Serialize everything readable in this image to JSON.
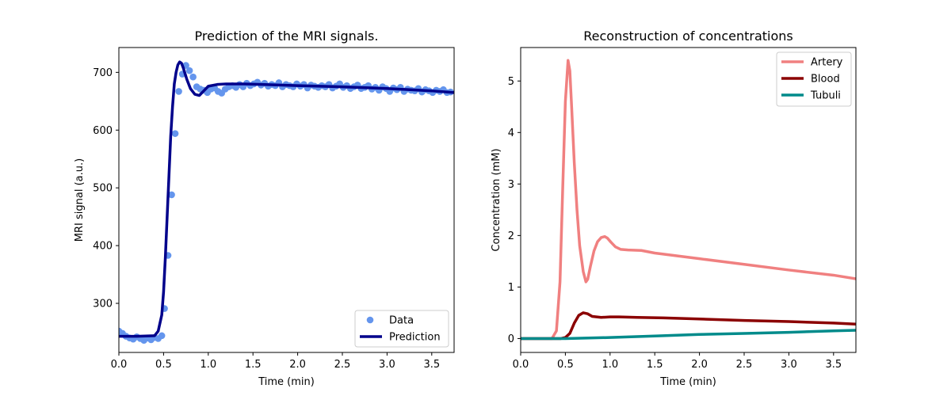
{
  "chart_data": [
    {
      "type": "line",
      "title": "Prediction of the MRI signals.",
      "xlabel": "Time (min)",
      "ylabel": "MRI signal (a.u.)",
      "xlim": [
        0.0,
        3.75
      ],
      "ylim": [
        215,
        743
      ],
      "xticks": [
        0.0,
        0.5,
        1.0,
        1.5,
        2.0,
        2.5,
        3.0,
        3.5
      ],
      "xtick_labels": [
        "0.0",
        "0.5",
        "1.0",
        "1.5",
        "2.0",
        "2.5",
        "3.0",
        "3.5"
      ],
      "yticks": [
        300,
        400,
        500,
        600,
        700
      ],
      "ytick_labels": [
        "300",
        "400",
        "500",
        "600",
        "700"
      ],
      "legend_position": "lower-right",
      "series": [
        {
          "name": "Data",
          "kind": "scatter",
          "color": "#6495ed",
          "x": [
            0.0,
            0.04,
            0.08,
            0.12,
            0.16,
            0.2,
            0.24,
            0.28,
            0.32,
            0.36,
            0.4,
            0.44,
            0.48,
            0.51,
            0.55,
            0.59,
            0.63,
            0.67,
            0.71,
            0.75,
            0.79,
            0.83,
            0.87,
            0.91,
            0.95,
            0.99,
            1.03,
            1.07,
            1.11,
            1.15,
            1.19,
            1.23,
            1.27,
            1.31,
            1.35,
            1.39,
            1.43,
            1.47,
            1.51,
            1.55,
            1.59,
            1.63,
            1.67,
            1.71,
            1.75,
            1.79,
            1.83,
            1.87,
            1.91,
            1.95,
            1.99,
            2.03,
            2.07,
            2.11,
            2.15,
            2.19,
            2.23,
            2.27,
            2.31,
            2.35,
            2.39,
            2.43,
            2.47,
            2.51,
            2.55,
            2.59,
            2.63,
            2.67,
            2.71,
            2.75,
            2.79,
            2.83,
            2.87,
            2.91,
            2.95,
            2.99,
            3.03,
            3.07,
            3.11,
            3.15,
            3.19,
            3.23,
            3.27,
            3.31,
            3.35,
            3.39,
            3.43,
            3.47,
            3.51,
            3.55,
            3.59,
            3.63,
            3.67,
            3.71
          ],
          "values": [
            252,
            248,
            243,
            240,
            238,
            242,
            239,
            236,
            240,
            237,
            241,
            239,
            244,
            291,
            383,
            488,
            594,
            667,
            697,
            712,
            703,
            692,
            675,
            671,
            669,
            665,
            671,
            673,
            667,
            664,
            671,
            675,
            677,
            674,
            679,
            675,
            681,
            677,
            680,
            683,
            678,
            681,
            676,
            679,
            677,
            682,
            675,
            679,
            677,
            675,
            680,
            676,
            679,
            673,
            678,
            676,
            674,
            677,
            675,
            679,
            673,
            676,
            680,
            674,
            677,
            672,
            675,
            678,
            672,
            674,
            677,
            671,
            674,
            669,
            675,
            672,
            667,
            673,
            670,
            674,
            667,
            671,
            669,
            668,
            672,
            666,
            670,
            668,
            665,
            669,
            667,
            670,
            665,
            666
          ]
        },
        {
          "name": "Prediction",
          "kind": "line",
          "color": "#00008b",
          "x": [
            0.0,
            0.2,
            0.4,
            0.44,
            0.48,
            0.5,
            0.52,
            0.54,
            0.56,
            0.58,
            0.6,
            0.62,
            0.64,
            0.66,
            0.68,
            0.7,
            0.72,
            0.74,
            0.76,
            0.8,
            0.85,
            0.9,
            0.95,
            1.0,
            1.1,
            1.2,
            1.4,
            1.6,
            2.0,
            2.5,
            3.0,
            3.5,
            3.75
          ],
          "values": [
            243,
            243,
            244,
            252,
            280,
            320,
            380,
            450,
            520,
            590,
            640,
            680,
            700,
            713,
            718,
            716,
            708,
            698,
            688,
            672,
            662,
            660,
            668,
            676,
            679,
            680,
            680,
            679,
            677,
            675,
            672,
            668,
            665
          ]
        }
      ]
    },
    {
      "type": "line",
      "title": "Reconstruction of concentrations",
      "xlabel": "Time (min)",
      "ylabel": "Concentration (mM)",
      "xlim": [
        0.0,
        3.75
      ],
      "ylim": [
        -0.27,
        5.65
      ],
      "xticks": [
        0.0,
        0.5,
        1.0,
        1.5,
        2.0,
        2.5,
        3.0,
        3.5
      ],
      "xtick_labels": [
        "0.0",
        "0.5",
        "1.0",
        "1.5",
        "2.0",
        "2.5",
        "3.0",
        "3.5"
      ],
      "yticks": [
        0,
        1,
        2,
        3,
        4,
        5
      ],
      "ytick_labels": [
        "0",
        "1",
        "2",
        "3",
        "4",
        "5"
      ],
      "legend_position": "top-right",
      "series": [
        {
          "name": "Artery",
          "kind": "line",
          "color": "#f08080",
          "x": [
            0.0,
            0.35,
            0.4,
            0.44,
            0.47,
            0.5,
            0.53,
            0.55,
            0.57,
            0.6,
            0.63,
            0.66,
            0.7,
            0.73,
            0.75,
            0.78,
            0.82,
            0.86,
            0.9,
            0.94,
            0.97,
            1.01,
            1.06,
            1.12,
            1.2,
            1.35,
            1.5,
            2.0,
            2.5,
            3.0,
            3.5,
            3.75
          ],
          "values": [
            0.0,
            0.0,
            0.15,
            1.1,
            2.9,
            4.6,
            5.4,
            5.2,
            4.5,
            3.4,
            2.5,
            1.8,
            1.3,
            1.1,
            1.15,
            1.4,
            1.7,
            1.88,
            1.96,
            1.98,
            1.95,
            1.87,
            1.78,
            1.73,
            1.72,
            1.71,
            1.66,
            1.55,
            1.44,
            1.33,
            1.23,
            1.16
          ]
        },
        {
          "name": "Blood",
          "kind": "line",
          "color": "#8b0000",
          "x": [
            0.0,
            0.45,
            0.5,
            0.55,
            0.6,
            0.65,
            0.7,
            0.75,
            0.8,
            0.9,
            1.0,
            1.1,
            1.3,
            1.6,
            2.0,
            2.5,
            3.0,
            3.5,
            3.75
          ],
          "values": [
            0.0,
            0.0,
            0.02,
            0.1,
            0.3,
            0.45,
            0.5,
            0.48,
            0.43,
            0.41,
            0.42,
            0.42,
            0.41,
            0.4,
            0.38,
            0.35,
            0.33,
            0.3,
            0.28
          ]
        },
        {
          "name": "Tubuli",
          "kind": "line",
          "color": "#008b8b",
          "x": [
            0.0,
            0.5,
            1.0,
            1.5,
            2.0,
            2.5,
            3.0,
            3.5,
            3.75
          ],
          "values": [
            0.0,
            0.0,
            0.02,
            0.05,
            0.08,
            0.1,
            0.12,
            0.15,
            0.16
          ]
        }
      ]
    }
  ]
}
